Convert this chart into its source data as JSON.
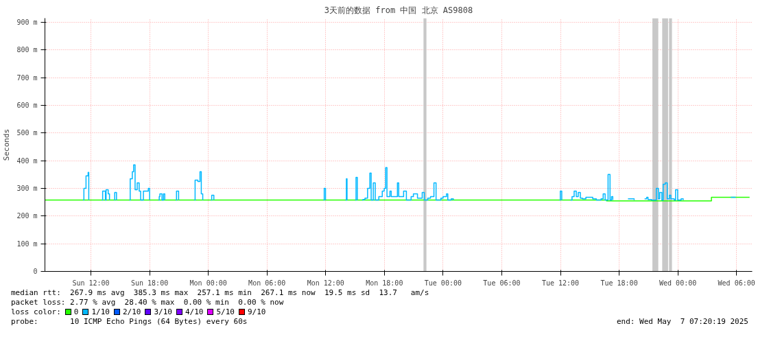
{
  "chart_data": {
    "type": "step",
    "title": "3天前的数据 from 中国 北京 AS9808",
    "ylabel": "Seconds",
    "xlim": [
      "2025-05-04T07:18",
      "2025-05-07T07:36"
    ],
    "xticks": [
      {
        "value": "2025-05-04T12:00",
        "label": "Sun 12:00"
      },
      {
        "value": "2025-05-04T18:00",
        "label": "Sun 18:00"
      },
      {
        "value": "2025-05-05T00:00",
        "label": "Mon 00:00"
      },
      {
        "value": "2025-05-05T06:00",
        "label": "Mon 06:00"
      },
      {
        "value": "2025-05-05T12:00",
        "label": "Mon 12:00"
      },
      {
        "value": "2025-05-05T18:00",
        "label": "Mon 18:00"
      },
      {
        "value": "2025-05-06T00:00",
        "label": "Tue 00:00"
      },
      {
        "value": "2025-05-06T06:00",
        "label": "Tue 06:00"
      },
      {
        "value": "2025-05-06T12:00",
        "label": "Tue 12:00"
      },
      {
        "value": "2025-05-06T18:00",
        "label": "Tue 18:00"
      },
      {
        "value": "2025-05-07T00:00",
        "label": "Wed 00:00"
      },
      {
        "value": "2025-05-07T06:00",
        "label": "Wed 06:00"
      }
    ],
    "ylim": [
      0,
      915
    ],
    "yticks": [
      0,
      {
        "value": 100,
        "label": "100 m"
      },
      {
        "value": 200,
        "label": "200 m"
      },
      {
        "value": 300,
        "label": "300 m"
      },
      {
        "value": 400,
        "label": "400 m"
      },
      {
        "value": 500,
        "label": "500 m"
      },
      {
        "value": 600,
        "label": "600 m"
      },
      {
        "value": 700,
        "label": "700 m"
      },
      {
        "value": 800,
        "label": "800 m"
      },
      {
        "value": 900,
        "label": "900 m"
      }
    ],
    "grid": true,
    "legend": "bottom",
    "legend_title": "loss color:",
    "line_style": "solid",
    "series": [
      {
        "name": "0",
        "color": "#26ff00",
        "x": [
          "2025-05-04T07:20",
          "2025-05-06T16:43",
          "2025-05-07T03:26",
          "2025-05-07T07:20"
        ],
        "values": [
          258,
          255,
          268,
          268
        ]
      },
      {
        "name": "1/10",
        "color": "#00b8ff",
        "x": [
          "2025-05-04T11:13",
          "2025-05-04T11:17",
          "2025-05-04T11:30",
          "2025-05-04T11:43",
          "2025-05-04T11:47",
          "2025-05-04T12:30",
          "2025-05-04T13:08",
          "2025-05-04T13:12",
          "2025-05-04T13:29",
          "2025-05-04T13:33",
          "2025-05-04T13:46",
          "2025-05-04T13:54",
          "2025-05-04T14:06",
          "2025-05-04T14:24",
          "2025-05-04T14:26",
          "2025-05-04T14:37",
          "2025-05-04T15:18",
          "2025-05-04T15:57",
          "2025-05-04T16:01",
          "2025-05-04T16:14",
          "2025-05-04T16:22",
          "2025-05-04T16:31",
          "2025-05-04T16:44",
          "2025-05-04T16:56",
          "2025-05-04T17:05",
          "2025-05-04T17:22",
          "2025-05-04T17:38",
          "2025-05-04T17:52",
          "2025-05-04T18:00",
          "2025-05-04T18:30",
          "2025-05-04T18:55",
          "2025-05-04T18:59",
          "2025-05-04T19:03",
          "2025-05-04T19:16",
          "2025-05-04T19:25",
          "2025-05-04T19:33",
          "2025-05-04T20:06",
          "2025-05-04T20:41",
          "2025-05-04T20:45",
          "2025-05-04T20:58",
          "2025-05-04T21:48",
          "2025-05-04T22:35",
          "2025-05-04T22:39",
          "2025-05-04T22:56",
          "2025-05-04T23:09",
          "2025-05-04T23:17",
          "2025-05-04T23:26",
          "2025-05-04T23:54",
          "2025-05-05T00:17",
          "2025-05-05T00:21",
          "2025-05-05T00:34",
          "2025-05-05T06:00",
          "2025-05-05T11:47",
          "2025-05-05T11:51",
          "2025-05-05T11:59",
          "2025-05-05T13:00",
          "2025-05-05T14:02",
          "2025-05-05T14:07",
          "2025-05-05T14:11",
          "2025-05-05T14:36",
          "2025-05-05T15:02",
          "2025-05-05T15:06",
          "2025-05-05T15:14",
          "2025-05-05T15:30",
          "2025-05-05T15:44",
          "2025-05-05T15:48",
          "2025-05-05T16:01",
          "2025-05-05T16:17",
          "2025-05-05T16:31",
          "2025-05-05T16:39",
          "2025-05-05T16:52",
          "2025-05-05T17:04",
          "2025-05-05T17:26",
          "2025-05-05T17:47",
          "2025-05-05T17:59",
          "2025-05-05T18:08",
          "2025-05-05T18:16",
          "2025-05-05T18:34",
          "2025-05-05T18:42",
          "2025-05-05T19:11",
          "2025-05-05T19:20",
          "2025-05-05T19:28",
          "2025-05-05T19:54",
          "2025-05-05T19:58",
          "2025-05-05T20:15",
          "2025-05-05T20:44",
          "2025-05-05T20:58",
          "2025-05-05T21:10",
          "2025-05-05T21:23",
          "2025-05-05T21:44",
          "2025-05-05T21:52",
          "2025-05-05T22:05",
          "2025-05-05T22:26",
          "2025-05-05T22:43",
          "2025-05-05T23:04",
          "2025-05-05T23:17",
          "2025-05-05T23:47",
          "2025-05-06T00:00",
          "2025-05-06T00:21",
          "2025-05-06T00:29",
          "2025-05-06T00:50",
          "2025-05-06T01:03",
          "2025-05-06T07:00",
          "2025-05-06T11:55",
          "2025-05-06T11:59",
          "2025-05-06T12:08",
          "2025-05-06T12:36",
          "2025-05-06T13:02",
          "2025-05-06T13:11",
          "2025-05-06T13:24",
          "2025-05-06T13:37",
          "2025-05-06T13:49",
          "2025-05-06T14:02",
          "2025-05-06T14:15",
          "2025-05-06T14:36",
          "2025-05-06T15:18",
          "2025-05-06T15:40",
          "2025-05-06T16:09",
          "2025-05-06T16:22",
          "2025-05-06T16:34",
          "2025-05-06T16:43",
          "2025-05-06T16:52",
          "2025-05-06T17:04",
          "2025-05-06T17:13",
          "2025-05-06T17:21",
          "2025-05-06T18:00",
          "2025-05-06T18:54",
          "2025-05-06T19:32",
          "2025-05-06T20:00",
          "2025-05-06T20:36",
          "2025-05-06T20:49",
          "2025-05-06T20:57",
          "2025-05-06T21:18",
          "2025-05-06T21:48",
          "2025-05-06T22:01",
          "2025-05-06T22:09",
          "2025-05-06T22:22",
          "2025-05-06T22:30",
          "2025-05-06T22:43",
          "2025-05-06T22:55",
          "2025-05-06T23:08",
          "2025-05-06T23:17",
          "2025-05-06T23:38",
          "2025-05-06T23:46",
          "2025-05-06T23:59",
          "2025-05-07T00:20",
          "2025-05-07T00:33",
          "2025-05-07T03:00",
          "2025-05-07T05:25",
          "2025-05-07T05:55"
        ],
        "values": [
          258,
          300,
          345,
          358,
          258,
          null,
          258,
          290,
          258,
          295,
          280,
          258,
          null,
          258,
          285,
          258,
          null,
          258,
          335,
          360,
          385,
          295,
          320,
          290,
          258,
          290,
          290,
          300,
          258,
          null,
          258,
          270,
          280,
          258,
          280,
          258,
          null,
          258,
          290,
          258,
          null,
          258,
          330,
          325,
          360,
          280,
          258,
          null,
          258,
          275,
          258,
          null,
          258,
          300,
          258,
          null,
          258,
          335,
          258,
          null,
          258,
          340,
          258,
          null,
          258,
          260,
          265,
          300,
          355,
          258,
          320,
          258,
          270,
          290,
          300,
          375,
          270,
          290,
          270,
          270,
          320,
          270,
          270,
          290,
          258,
          270,
          280,
          280,
          265,
          265,
          285,
          258,
          265,
          270,
          320,
          258,
          265,
          270,
          280,
          258,
          262,
          258,
          null,
          258,
          290,
          258,
          null,
          258,
          270,
          290,
          270,
          285,
          265,
          262,
          268,
          262,
          258,
          262,
          280,
          258,
          258,
          350,
          258,
          270,
          258,
          null,
          262,
          258,
          null,
          262,
          268,
          260,
          258,
          300,
          262,
          285,
          258,
          315,
          320,
          262,
          275,
          262,
          258,
          295,
          258,
          262,
          258,
          null,
          268,
          268
        ]
      },
      {
        "name": "2/10",
        "color": "#0059ff"
      },
      {
        "name": "3/10",
        "color": "#5e00ff"
      },
      {
        "name": "4/10",
        "color": "#7e00ff"
      },
      {
        "name": "5/10",
        "color": "#dd00ff"
      },
      {
        "name": "9/10",
        "color": "#ff0000"
      }
    ],
    "bands": [
      {
        "axis": "x",
        "from": "2025-05-05T22:00",
        "to": "2025-05-05T22:18",
        "color": "#c8c8c8"
      },
      {
        "axis": "x",
        "from": "2025-05-06T21:24",
        "to": "2025-05-06T22:00",
        "color": "#c8c8c8"
      },
      {
        "axis": "x",
        "from": "2025-05-06T22:24",
        "to": "2025-05-06T23:00",
        "color": "#c8c8c8"
      },
      {
        "axis": "x",
        "from": "2025-05-06T23:06",
        "to": "2025-05-06T23:24",
        "color": "#c8c8c8"
      }
    ],
    "annotations": [
      "median rtt:  267.9 ms avg  385.3 ms max  257.1 ms min  267.1 ms now  19.5 ms sd  13.7   am/s",
      "packet loss: 2.77 % avg  28.40 % max  0.00 % min  0.00 % now",
      "probe:       10 ICMP Echo Pings (64 Bytes) every 60s",
      "end: Wed May  7 07:20:19 2025"
    ]
  }
}
